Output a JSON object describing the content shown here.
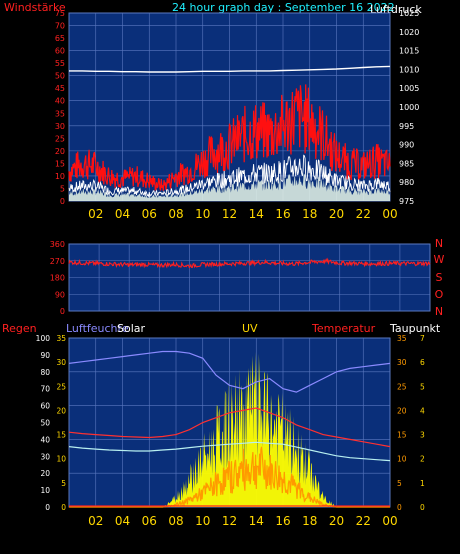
{
  "header": {
    "left_label": "Windstärke",
    "title": "24 hour graph day : September 16 2022",
    "right_label": "Luftdruck"
  },
  "bottom_header": {
    "regen": "Regen",
    "luftfeuchte": "Luftfeuchte",
    "solar": "Solar",
    "uv": "UV",
    "temperatur": "Temperatur",
    "taupunkt": "Taupunkt"
  },
  "colors": {
    "plot_bg": "#0a2f7a",
    "grid": "#5a78c0",
    "wind_gust": "#ff1010",
    "wind_avg": "#ffffff",
    "wind_fill": "#e8f6e8",
    "pressure": "#ffffff",
    "direction": "#ff2020",
    "humidity": "#8a8aff",
    "temperature": "#ff3030",
    "dewpoint": "#b8f0f0",
    "solar": "#ffff00",
    "uv": "#ff9a00",
    "rain": "#ff2020",
    "label_red": "#ff2020",
    "label_yellow": "#ffd800",
    "label_cyan": "#20f0ff",
    "label_white": "#ffffff",
    "label_blue": "#8a8aff",
    "label_orange": "#ff9a00"
  },
  "chart_data": [
    {
      "type": "line",
      "name": "wind-pressure",
      "x_ticks": [
        "02",
        "04",
        "06",
        "08",
        "10",
        "12",
        "14",
        "16",
        "18",
        "20",
        "22",
        "00"
      ],
      "left_axis": {
        "ylim": [
          0,
          75
        ],
        "ticks": [
          0,
          5,
          10,
          15,
          20,
          25,
          30,
          35,
          40,
          45,
          50,
          55,
          60,
          65,
          70,
          75
        ]
      },
      "right_axis": {
        "ylim": [
          975,
          1025
        ],
        "ticks": [
          975,
          980,
          985,
          990,
          995,
          1000,
          1005,
          1010,
          1015,
          1020,
          1025
        ]
      },
      "hours": [
        0,
        1,
        2,
        3,
        4,
        5,
        6,
        7,
        8,
        9,
        10,
        11,
        12,
        13,
        14,
        15,
        16,
        17,
        18,
        19,
        20,
        21,
        22,
        23,
        24
      ],
      "gust": [
        12,
        15,
        14,
        10,
        9,
        10,
        8,
        6,
        10,
        12,
        16,
        20,
        22,
        26,
        28,
        27,
        30,
        34,
        32,
        26,
        18,
        15,
        14,
        16,
        14
      ],
      "average": [
        5,
        6,
        6,
        4,
        4,
        4,
        3,
        3,
        4,
        5,
        7,
        8,
        9,
        10,
        11,
        11,
        12,
        14,
        13,
        11,
        8,
        7,
        6,
        7,
        6
      ],
      "pressure": [
        1009.6,
        1009.6,
        1009.5,
        1009.5,
        1009.4,
        1009.4,
        1009.3,
        1009.3,
        1009.3,
        1009.4,
        1009.5,
        1009.5,
        1009.5,
        1009.6,
        1009.6,
        1009.6,
        1009.7,
        1009.8,
        1009.9,
        1010.0,
        1010.1,
        1010.3,
        1010.5,
        1010.7,
        1010.8
      ]
    },
    {
      "type": "line",
      "name": "wind-direction",
      "x_ticks": [],
      "left_axis": {
        "ylim": [
          0,
          360
        ],
        "ticks": [
          0,
          90,
          180,
          270,
          360
        ]
      },
      "right_labels": [
        "N",
        "W",
        "S",
        "O",
        "N"
      ],
      "hours": [
        0,
        1,
        2,
        3,
        4,
        5,
        6,
        7,
        8,
        9,
        10,
        11,
        12,
        13,
        14,
        15,
        16,
        17,
        18,
        19,
        20,
        21,
        22,
        23,
        24
      ],
      "direction": [
        262,
        258,
        255,
        252,
        248,
        250,
        246,
        250,
        242,
        250,
        252,
        255,
        258,
        262,
        256,
        254,
        262,
        268,
        258,
        256,
        254,
        255,
        256,
        255,
        256
      ]
    },
    {
      "type": "line",
      "name": "rain-humidity-solar-uv-temperature",
      "x_ticks": [
        "02",
        "04",
        "06",
        "08",
        "10",
        "12",
        "14",
        "16",
        "18",
        "20",
        "22",
        "00"
      ],
      "axes": {
        "rain": {
          "ylim": [
            0,
            100
          ],
          "ticks": [
            0,
            10,
            20,
            30,
            40,
            50,
            60,
            70,
            80,
            90,
            100
          ]
        },
        "humidity": {
          "ylim": [
            0,
            35
          ],
          "ticks": [
            0,
            5,
            10,
            15,
            20,
            25,
            30,
            35
          ]
        },
        "temperature": {
          "ylim": [
            0,
            35
          ],
          "ticks": [
            0,
            5,
            10,
            15,
            20,
            25,
            30,
            35
          ]
        },
        "dewpoint": {
          "ylim": [
            0,
            7
          ],
          "ticks": [
            0,
            1,
            2,
            3,
            4,
            5,
            6,
            7
          ]
        }
      },
      "hours": [
        0,
        1,
        2,
        3,
        4,
        5,
        6,
        7,
        8,
        9,
        10,
        11,
        12,
        13,
        14,
        15,
        16,
        17,
        18,
        19,
        20,
        21,
        22,
        23,
        24
      ],
      "humidity": [
        85,
        86,
        87,
        88,
        89,
        90,
        91,
        92,
        92,
        91,
        88,
        78,
        72,
        70,
        74,
        76,
        70,
        68,
        72,
        76,
        80,
        82,
        83,
        84,
        85
      ],
      "temperature": [
        15.5,
        15.2,
        15.0,
        14.8,
        14.6,
        14.5,
        14.4,
        14.6,
        15.0,
        16.0,
        17.5,
        18.5,
        19.5,
        20.0,
        20.5,
        19.5,
        18.5,
        17.0,
        16.0,
        15.0,
        14.5,
        14.0,
        13.5,
        13.0,
        12.5
      ],
      "dewpoint": [
        12.5,
        12.2,
        12.0,
        11.8,
        11.7,
        11.6,
        11.6,
        11.8,
        12.0,
        12.3,
        12.6,
        12.8,
        13.0,
        13.2,
        13.4,
        13.2,
        13.0,
        12.4,
        11.8,
        11.2,
        10.6,
        10.2,
        10.0,
        9.8,
        9.6
      ],
      "solar": [
        0,
        0,
        0,
        0,
        0,
        0,
        0,
        0,
        2,
        6,
        10,
        14,
        18,
        20,
        22,
        18,
        16,
        12,
        8,
        2,
        0,
        0,
        0,
        0,
        0
      ],
      "uv": [
        0,
        0,
        0,
        0,
        0,
        0,
        0,
        0,
        0.1,
        0.3,
        0.6,
        1.0,
        1.3,
        1.6,
        1.8,
        1.5,
        1.2,
        0.8,
        0.4,
        0.1,
        0,
        0,
        0,
        0,
        0
      ],
      "rain": [
        0,
        0,
        0,
        0,
        0,
        0,
        0,
        0,
        0,
        0,
        0,
        0,
        0,
        0,
        0,
        0,
        0,
        0,
        0,
        0,
        0,
        0,
        0,
        0,
        0
      ]
    }
  ]
}
